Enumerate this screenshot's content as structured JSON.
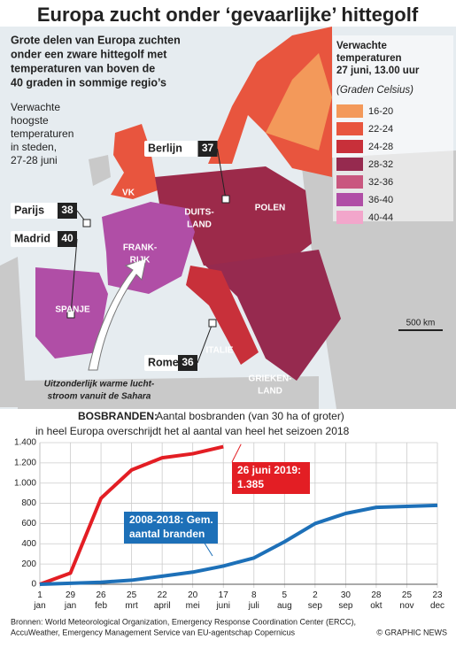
{
  "map": {
    "title": "Europa zucht onder ‘gevaarlijke’ hittegolf",
    "subtitle": [
      "Grote delen van Europa zuchten",
      "onder een zware hittegolf met",
      "temperaturen van boven de",
      "40 graden in sommige regio’s"
    ],
    "note": [
      "Verwachte",
      "hoogste",
      "temperaturen",
      "in steden,",
      "27-28 juni"
    ],
    "legend": {
      "title": [
        "Verwachte",
        "temperaturen",
        "27 juni, 13.00 uur"
      ],
      "unit": "(Graden Celsius)",
      "items": [
        {
          "label": "16-20",
          "color": "#f3995a"
        },
        {
          "label": "22-24",
          "color": "#e8553e"
        },
        {
          "label": "24-28",
          "color": "#c8303a"
        },
        {
          "label": "28-32",
          "color": "#962a4f"
        },
        {
          "label": "32-36",
          "color": "#c9577f"
        },
        {
          "label": "36-40",
          "color": "#b04ea6"
        },
        {
          "label": "40-44",
          "color": "#f2a6cb"
        }
      ]
    },
    "cities": [
      {
        "name": "Berlijn",
        "value": "37"
      },
      {
        "name": "Parijs",
        "value": "38"
      },
      {
        "name": "Madrid",
        "value": "40"
      },
      {
        "name": "Rome",
        "value": "36"
      }
    ],
    "countries": [
      "VK",
      "DUITS-",
      "LAND",
      "POLEN",
      "FRANK-",
      "RIJK",
      "SPANJE",
      "ITALIE",
      "GRIEKEN-",
      "LAND"
    ],
    "sahara_note": [
      "Uitzonderlijk warme lucht-",
      "stroom vanuit de Sahara"
    ],
    "scale": "500 km"
  },
  "chart_data": {
    "type": "line",
    "title_bold": "BOSBRANDEN:",
    "title": "Aantal bosbranden (van 30 ha of groter)",
    "subtitle": "in heel Europa overschrijdt het al aantal van heel het seizoen 2018",
    "categories": [
      "1 jan",
      "29 jan",
      "26 feb",
      "25 mrt",
      "22 april",
      "20 mei",
      "17 juni",
      "8 juli",
      "5 aug",
      "2 sep",
      "30 sep",
      "28 okt",
      "25 nov",
      "23 dec"
    ],
    "series": [
      {
        "name": "2019",
        "color": "#e31e24",
        "values": [
          0,
          110,
          850,
          1130,
          1250,
          1290,
          1360,
          null,
          null,
          null,
          null,
          null,
          null,
          null
        ]
      },
      {
        "name": "2008-2018",
        "color": "#1d70b8",
        "values": [
          0,
          10,
          20,
          40,
          80,
          120,
          180,
          260,
          420,
          600,
          700,
          760,
          770,
          780
        ]
      }
    ],
    "ylim": [
      0,
      1400
    ],
    "yticks": [
      0,
      200,
      400,
      600,
      800,
      {
        "value": 1000,
        "label": "1.000"
      },
      {
        "value": 1200,
        "label": "1.200"
      },
      {
        "value": 1400,
        "label": "1.400"
      }
    ],
    "grid": true,
    "annotations": [
      {
        "text": [
          "26 juni 2019:",
          "1.385"
        ],
        "value": 1385
      },
      {
        "text": [
          "2008-2018: Gem.",
          "aantal branden"
        ]
      }
    ]
  },
  "footer": {
    "sources": [
      "Bronnen: World Meteorological Organization, Emergency Response Coordination Center (ERCC),",
      "AccuWeather, Emergency Management Service van EU-agentschap Copernicus"
    ],
    "credit": "© GRAPHIC NEWS"
  }
}
